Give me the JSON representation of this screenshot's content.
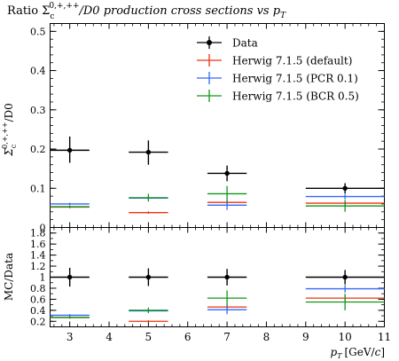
{
  "chart_data": {
    "type": "scatter",
    "title": "Ratio Σc0,+,++/D0 production cross sections vs pT",
    "title_parts": {
      "lead": "Ratio Σ",
      "sub": "c",
      "sup": "0,+,++",
      "mid": "/D0 production cross sections vs p",
      "sub2": "T"
    },
    "xlabel": "pT [GeV/c]",
    "xlabel_parts": {
      "p": "p",
      "sub": "T",
      "unit": "[GeV/",
      "c": "c",
      "close": "]"
    },
    "xlim": [
      2.5,
      11
    ],
    "xticks": [
      "3",
      "4",
      "5",
      "6",
      "7",
      "8",
      "9",
      "10",
      "11"
    ],
    "top_panel": {
      "ylabel": "Σc0,+,++/D0",
      "ylabel_parts": {
        "sym": "Σ",
        "sub": "c",
        "sup": "0,+,++",
        "tail": "/D0"
      },
      "ylim": [
        0,
        0.52
      ],
      "yticks": [
        "0",
        "0.1",
        "0.2",
        "0.3",
        "0.4",
        "0.5"
      ],
      "legend": "top-right",
      "series": [
        {
          "name": "Data",
          "color": "#000000",
          "style": "marker",
          "points": [
            {
              "x": 3,
              "xlo": 2.5,
              "xhi": 3.5,
              "y": 0.197,
              "ylo": 0.165,
              "yhi": 0.232
            },
            {
              "x": 5,
              "xlo": 4.5,
              "xhi": 5.5,
              "y": 0.192,
              "ylo": 0.16,
              "yhi": 0.222
            },
            {
              "x": 7,
              "xlo": 6.5,
              "xhi": 7.5,
              "y": 0.138,
              "ylo": 0.118,
              "yhi": 0.158
            },
            {
              "x": 10,
              "xlo": 9,
              "xhi": 11,
              "y": 0.1,
              "ylo": 0.087,
              "yhi": 0.113
            }
          ]
        },
        {
          "name": "Herwig 7.1.5 (default)",
          "color": "#ee3311",
          "style": "line",
          "points": [
            {
              "x": 3,
              "xlo": 2.5,
              "xhi": 3.5,
              "y": 0.052,
              "ylo": 0.049,
              "yhi": 0.055
            },
            {
              "x": 5,
              "xlo": 4.5,
              "xhi": 5.5,
              "y": 0.038,
              "ylo": 0.035,
              "yhi": 0.041
            },
            {
              "x": 7,
              "xlo": 6.5,
              "xhi": 7.5,
              "y": 0.064,
              "ylo": 0.059,
              "yhi": 0.069
            },
            {
              "x": 10,
              "xlo": 9,
              "xhi": 11,
              "y": 0.062,
              "ylo": 0.056,
              "yhi": 0.068
            }
          ]
        },
        {
          "name": "Herwig 7.1.5 (PCR 0.1)",
          "color": "#3366ff",
          "style": "line",
          "points": [
            {
              "x": 3,
              "xlo": 2.5,
              "xhi": 3.5,
              "y": 0.06,
              "ylo": 0.057,
              "yhi": 0.063
            },
            {
              "x": 5,
              "xlo": 4.5,
              "xhi": 5.5,
              "y": 0.075,
              "ylo": 0.071,
              "yhi": 0.079
            },
            {
              "x": 7,
              "xlo": 6.5,
              "xhi": 7.5,
              "y": 0.057,
              "ylo": 0.045,
              "yhi": 0.069
            },
            {
              "x": 10,
              "xlo": 9,
              "xhi": 11,
              "y": 0.079,
              "ylo": 0.072,
              "yhi": 0.086
            }
          ]
        },
        {
          "name": "Herwig 7.1.5 (BCR 0.5)",
          "color": "#109618",
          "style": "line",
          "points": [
            {
              "x": 3,
              "xlo": 2.5,
              "xhi": 3.5,
              "y": 0.053,
              "ylo": 0.05,
              "yhi": 0.056
            },
            {
              "x": 5,
              "xlo": 4.5,
              "xhi": 5.5,
              "y": 0.076,
              "ylo": 0.066,
              "yhi": 0.086
            },
            {
              "x": 7,
              "xlo": 6.5,
              "xhi": 7.5,
              "y": 0.086,
              "ylo": 0.066,
              "yhi": 0.106
            },
            {
              "x": 10,
              "xlo": 9,
              "xhi": 11,
              "y": 0.055,
              "ylo": 0.04,
              "yhi": 0.07
            }
          ]
        }
      ]
    },
    "ratio_panel": {
      "ylabel": "MC/Data",
      "ylim": [
        0.1,
        1.9
      ],
      "yticks": [
        "0.2",
        "0.4",
        "0.6",
        "0.8",
        "1",
        "1.2",
        "1.4",
        "1.6",
        "1.8"
      ],
      "series": [
        {
          "name": "Data",
          "color": "#000000",
          "style": "marker",
          "points": [
            {
              "x": 3,
              "xlo": 2.5,
              "xhi": 3.5,
              "y": 1.0,
              "ylo": 0.83,
              "yhi": 1.17
            },
            {
              "x": 5,
              "xlo": 4.5,
              "xhi": 5.5,
              "y": 1.0,
              "ylo": 0.84,
              "yhi": 1.16
            },
            {
              "x": 7,
              "xlo": 6.5,
              "xhi": 7.5,
              "y": 1.0,
              "ylo": 0.85,
              "yhi": 1.15
            },
            {
              "x": 10,
              "xlo": 9,
              "xhi": 11,
              "y": 1.0,
              "ylo": 0.87,
              "yhi": 1.13
            }
          ]
        },
        {
          "name": "Herwig 7.1.5 (default)",
          "color": "#ee3311",
          "style": "line",
          "points": [
            {
              "x": 3,
              "xlo": 2.5,
              "xhi": 3.5,
              "y": 0.27,
              "ylo": 0.25,
              "yhi": 0.29
            },
            {
              "x": 5,
              "xlo": 4.5,
              "xhi": 5.5,
              "y": 0.2,
              "ylo": 0.18,
              "yhi": 0.22
            },
            {
              "x": 7,
              "xlo": 6.5,
              "xhi": 7.5,
              "y": 0.46,
              "ylo": 0.43,
              "yhi": 0.49
            },
            {
              "x": 10,
              "xlo": 9,
              "xhi": 11,
              "y": 0.62,
              "ylo": 0.57,
              "yhi": 0.67
            }
          ]
        },
        {
          "name": "Herwig 7.1.5 (PCR 0.1)",
          "color": "#3366ff",
          "style": "line",
          "points": [
            {
              "x": 3,
              "xlo": 2.5,
              "xhi": 3.5,
              "y": 0.31,
              "ylo": 0.29,
              "yhi": 0.33
            },
            {
              "x": 5,
              "xlo": 4.5,
              "xhi": 5.5,
              "y": 0.39,
              "ylo": 0.37,
              "yhi": 0.41
            },
            {
              "x": 7,
              "xlo": 6.5,
              "xhi": 7.5,
              "y": 0.41,
              "ylo": 0.33,
              "yhi": 0.49
            },
            {
              "x": 10,
              "xlo": 9,
              "xhi": 11,
              "y": 0.79,
              "ylo": 0.72,
              "yhi": 0.86
            }
          ]
        },
        {
          "name": "Herwig 7.1.5 (BCR 0.5)",
          "color": "#109618",
          "style": "line",
          "points": [
            {
              "x": 3,
              "xlo": 2.5,
              "xhi": 3.5,
              "y": 0.27,
              "ylo": 0.25,
              "yhi": 0.29
            },
            {
              "x": 5,
              "xlo": 4.5,
              "xhi": 5.5,
              "y": 0.4,
              "ylo": 0.35,
              "yhi": 0.45
            },
            {
              "x": 7,
              "xlo": 6.5,
              "xhi": 7.5,
              "y": 0.62,
              "ylo": 0.48,
              "yhi": 0.76
            },
            {
              "x": 10,
              "xlo": 9,
              "xhi": 11,
              "y": 0.55,
              "ylo": 0.4,
              "yhi": 0.7
            }
          ]
        }
      ]
    }
  }
}
